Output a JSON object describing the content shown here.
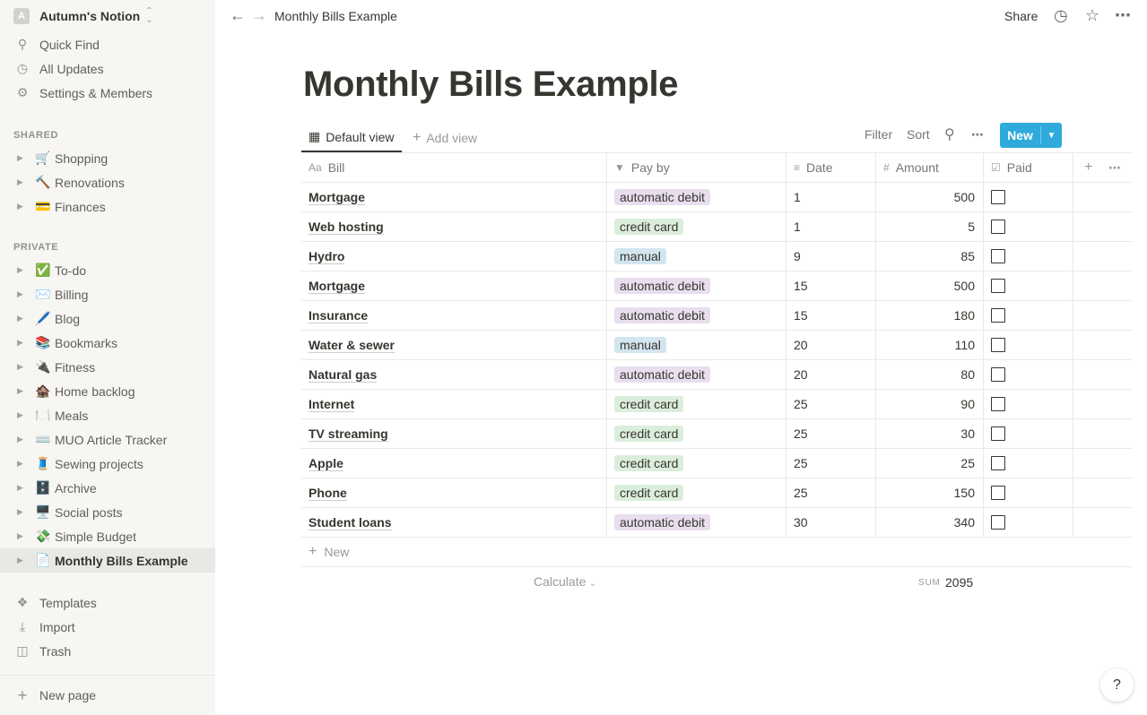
{
  "workspace": {
    "initial": "A",
    "name": "Autumn's Notion"
  },
  "sidebar": {
    "top_items": [
      {
        "label": "Quick Find",
        "icon": "search-icon"
      },
      {
        "label": "All Updates",
        "icon": "clock-icon"
      },
      {
        "label": "Settings & Members",
        "icon": "gear-icon"
      }
    ],
    "shared_label": "SHARED",
    "shared_pages": [
      {
        "emoji": "🛒",
        "label": "Shopping"
      },
      {
        "emoji": "🔨",
        "label": "Renovations"
      },
      {
        "emoji": "💳",
        "label": "Finances"
      }
    ],
    "private_label": "PRIVATE",
    "private_pages": [
      {
        "emoji": "✅",
        "label": "To-do"
      },
      {
        "emoji": "✉️",
        "label": "Billing"
      },
      {
        "emoji": "🖊️",
        "label": "Blog"
      },
      {
        "emoji": "📚",
        "label": "Bookmarks"
      },
      {
        "emoji": "🔌",
        "label": "Fitness"
      },
      {
        "emoji": "🏚️",
        "label": "Home backlog"
      },
      {
        "emoji": "🍽️",
        "label": "Meals"
      },
      {
        "emoji": "⌨️",
        "label": "MUO Article Tracker"
      },
      {
        "emoji": "🧵",
        "label": "Sewing projects"
      },
      {
        "emoji": "🗄️",
        "label": "Archive"
      },
      {
        "emoji": "🖥️",
        "label": "Social posts"
      },
      {
        "emoji": "💸",
        "label": "Simple Budget"
      },
      {
        "emoji": "📄",
        "label": "Monthly Bills Example"
      }
    ],
    "bottom_items": [
      {
        "label": "Templates",
        "icon": "templates-icon"
      },
      {
        "label": "Import",
        "icon": "import-icon"
      },
      {
        "label": "Trash",
        "icon": "trash-icon"
      }
    ],
    "new_page": "New page"
  },
  "topbar": {
    "breadcrumb": "Monthly Bills Example",
    "share": "Share"
  },
  "page": {
    "title": "Monthly Bills Example"
  },
  "views": {
    "default_view": "Default view",
    "add_view": "Add view",
    "filter": "Filter",
    "sort": "Sort",
    "new": "New"
  },
  "table": {
    "columns": {
      "bill": "Bill",
      "pay_by": "Pay by",
      "date": "Date",
      "amount": "Amount",
      "paid": "Paid"
    },
    "rows": [
      {
        "bill": "Mortgage",
        "pay_by": "automatic debit",
        "date": "1",
        "amount": "500"
      },
      {
        "bill": "Web hosting",
        "pay_by": "credit card",
        "date": "1",
        "amount": "5"
      },
      {
        "bill": "Hydro",
        "pay_by": "manual",
        "date": "9",
        "amount": "85"
      },
      {
        "bill": "Mortgage",
        "pay_by": "automatic debit",
        "date": "15",
        "amount": "500"
      },
      {
        "bill": "Insurance",
        "pay_by": "automatic debit",
        "date": "15",
        "amount": "180"
      },
      {
        "bill": "Water & sewer",
        "pay_by": "manual",
        "date": "20",
        "amount": "110"
      },
      {
        "bill": "Natural gas",
        "pay_by": "automatic debit",
        "date": "20",
        "amount": "80"
      },
      {
        "bill": "Internet",
        "pay_by": "credit card",
        "date": "25",
        "amount": "90"
      },
      {
        "bill": "TV streaming",
        "pay_by": "credit card",
        "date": "25",
        "amount": "30"
      },
      {
        "bill": "Apple",
        "pay_by": "credit card",
        "date": "25",
        "amount": "25"
      },
      {
        "bill": "Phone",
        "pay_by": "credit card",
        "date": "25",
        "amount": "150"
      },
      {
        "bill": "Student loans",
        "pay_by": "automatic debit",
        "date": "30",
        "amount": "340"
      }
    ],
    "new_row": "New",
    "calculate": "Calculate",
    "sum_label": "SUM",
    "sum_value": "2095"
  },
  "tag_colors": {
    "automatic debit": "#e8deee",
    "credit card": "#dbeddb",
    "manual": "#d3e5ef"
  },
  "accent_color": "#2eaadc",
  "help": "?"
}
